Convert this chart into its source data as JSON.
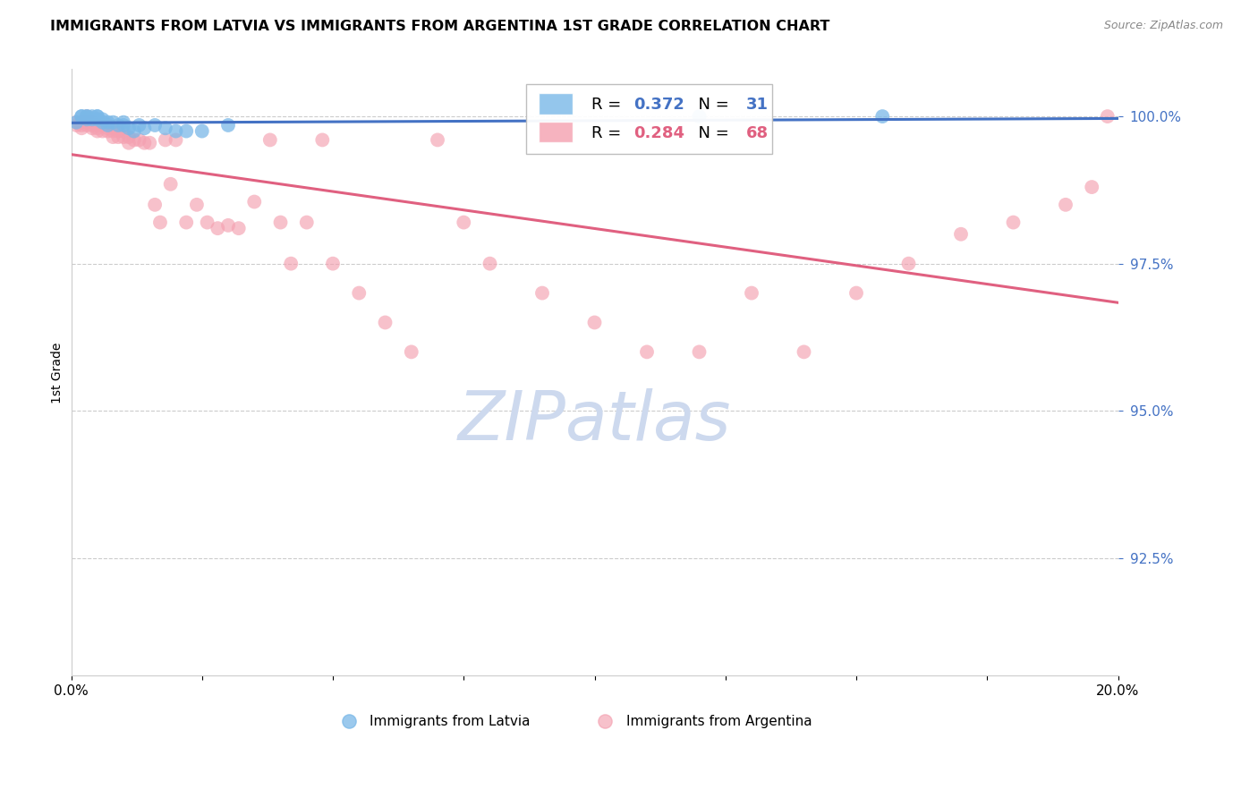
{
  "title": "IMMIGRANTS FROM LATVIA VS IMMIGRANTS FROM ARGENTINA 1ST GRADE CORRELATION CHART",
  "source": "Source: ZipAtlas.com",
  "ylabel": "1st Grade",
  "ytick_labels": [
    "100.0%",
    "97.5%",
    "95.0%",
    "92.5%"
  ],
  "ytick_values": [
    1.0,
    0.975,
    0.95,
    0.925
  ],
  "xlim": [
    0.0,
    0.2
  ],
  "ylim": [
    0.905,
    1.008
  ],
  "legend_blue_r": "0.372",
  "legend_blue_n": "31",
  "legend_pink_r": "0.284",
  "legend_pink_n": "68",
  "legend_label_blue": "Immigrants from Latvia",
  "legend_label_pink": "Immigrants from Argentina",
  "blue_color": "#7ab8e8",
  "pink_color": "#f4a0b0",
  "blue_line_color": "#4472c4",
  "pink_line_color": "#e06080",
  "background_color": "#ffffff",
  "grid_color": "#cccccc",
  "watermark_color": "#cdd9ee",
  "blue_x": [
    0.001,
    0.002,
    0.002,
    0.003,
    0.003,
    0.003,
    0.004,
    0.004,
    0.005,
    0.005,
    0.005,
    0.006,
    0.006,
    0.007,
    0.007,
    0.008,
    0.009,
    0.01,
    0.01,
    0.011,
    0.012,
    0.013,
    0.014,
    0.016,
    0.018,
    0.02,
    0.022,
    0.025,
    0.03,
    0.12,
    0.155
  ],
  "blue_y": [
    0.999,
    1.0,
    1.0,
    1.0,
    1.0,
    0.9995,
    1.0,
    0.9995,
    1.0,
    1.0,
    0.9995,
    0.999,
    0.9995,
    0.999,
    0.9985,
    0.999,
    0.9985,
    0.999,
    0.9985,
    0.998,
    0.9975,
    0.9985,
    0.998,
    0.9985,
    0.998,
    0.9975,
    0.9975,
    0.9975,
    0.9985,
    1.0,
    1.0
  ],
  "pink_x": [
    0.001,
    0.001,
    0.002,
    0.002,
    0.002,
    0.003,
    0.003,
    0.003,
    0.004,
    0.004,
    0.004,
    0.005,
    0.005,
    0.005,
    0.006,
    0.006,
    0.007,
    0.007,
    0.008,
    0.008,
    0.008,
    0.009,
    0.009,
    0.01,
    0.01,
    0.011,
    0.011,
    0.012,
    0.013,
    0.014,
    0.015,
    0.016,
    0.017,
    0.018,
    0.019,
    0.02,
    0.022,
    0.024,
    0.026,
    0.028,
    0.03,
    0.032,
    0.035,
    0.038,
    0.04,
    0.042,
    0.045,
    0.048,
    0.05,
    0.055,
    0.06,
    0.065,
    0.07,
    0.075,
    0.08,
    0.09,
    0.1,
    0.11,
    0.12,
    0.13,
    0.14,
    0.15,
    0.16,
    0.17,
    0.18,
    0.19,
    0.195,
    0.198
  ],
  "pink_y": [
    0.999,
    0.9985,
    0.999,
    0.9985,
    0.998,
    1.0,
    0.999,
    0.9985,
    0.999,
    0.9985,
    0.998,
    0.9985,
    0.998,
    0.9975,
    0.9985,
    0.9975,
    0.998,
    0.9975,
    0.998,
    0.9975,
    0.9965,
    0.9975,
    0.9965,
    0.9975,
    0.9965,
    0.9965,
    0.9955,
    0.996,
    0.996,
    0.9955,
    0.9955,
    0.985,
    0.982,
    0.996,
    0.9885,
    0.996,
    0.982,
    0.985,
    0.982,
    0.981,
    0.9815,
    0.981,
    0.9855,
    0.996,
    0.982,
    0.975,
    0.982,
    0.996,
    0.975,
    0.97,
    0.965,
    0.96,
    0.996,
    0.982,
    0.975,
    0.97,
    0.965,
    0.96,
    0.96,
    0.97,
    0.96,
    0.97,
    0.975,
    0.98,
    0.982,
    0.985,
    0.988,
    1.0
  ]
}
